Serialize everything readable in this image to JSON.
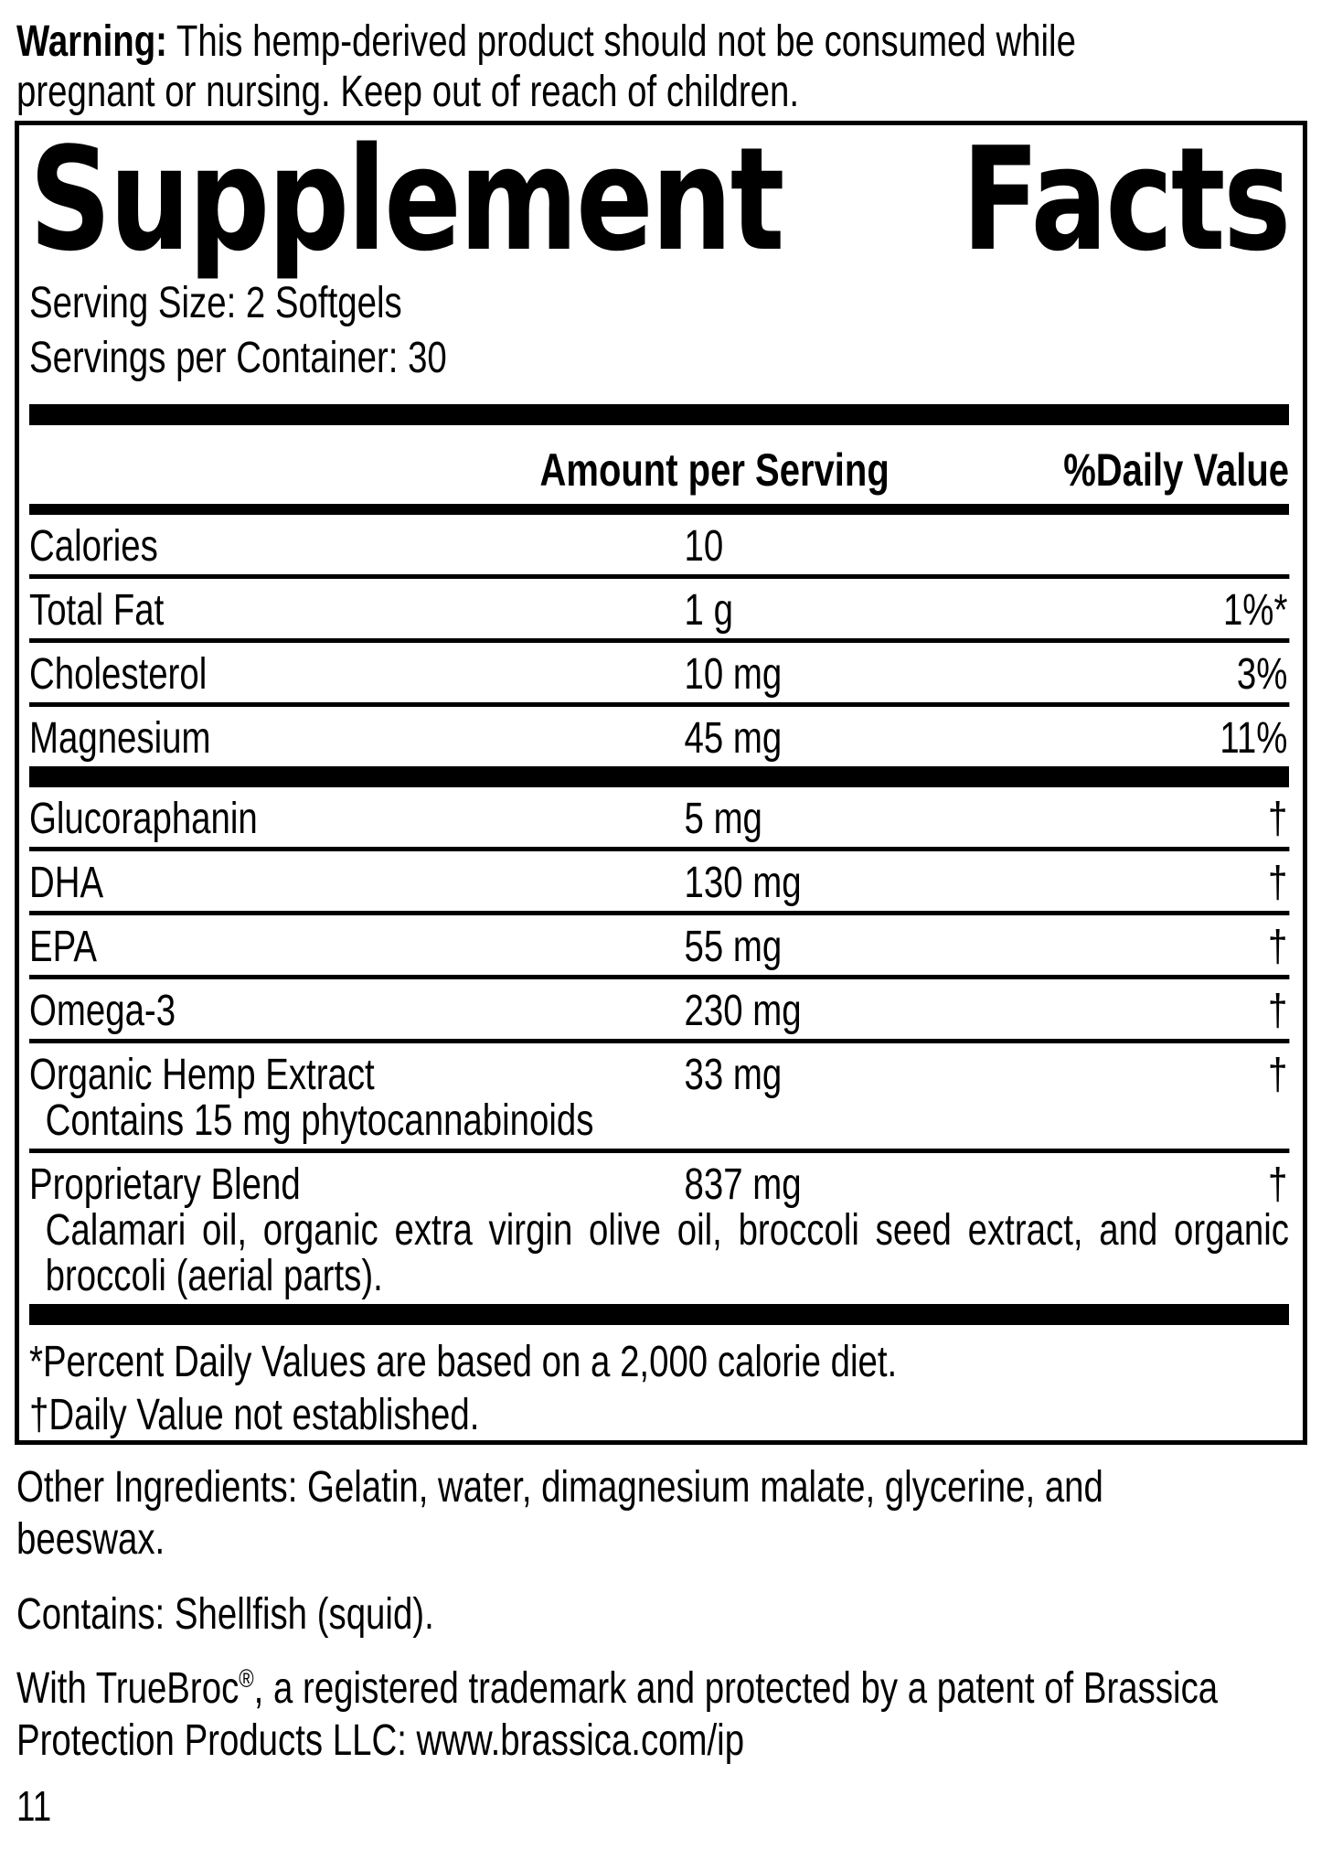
{
  "colors": {
    "ink": "#000000",
    "paper": "#ffffff"
  },
  "warning": {
    "label": "Warning:",
    "text": " This hemp-derived product should not be consumed while pregnant or nursing. Keep out of reach of children."
  },
  "panel": {
    "title_word1": "Supplement",
    "title_word2": "Facts",
    "serving_size": "Serving Size: 2 Softgels",
    "servings_per_container": "Servings per Container: 30",
    "col_amount": "Amount per Serving",
    "col_dv": "%Daily Value",
    "rows": [
      {
        "name": "Calories",
        "amount": "10",
        "dv": ""
      },
      {
        "name": "Total Fat",
        "amount": "1 g",
        "dv": "1%*"
      },
      {
        "name": "Cholesterol",
        "amount": "10 mg",
        "dv": "3%"
      },
      {
        "name": "Magnesium",
        "amount": "45 mg",
        "dv": "11%",
        "thick_after": true
      },
      {
        "name": "Glucoraphanin",
        "amount": "5 mg",
        "dv": "†"
      },
      {
        "name": "DHA",
        "amount": "130 mg",
        "dv": "†"
      },
      {
        "name": "EPA",
        "amount": "55 mg",
        "dv": "†"
      },
      {
        "name": "Omega-3",
        "amount": "230 mg",
        "dv": "†"
      },
      {
        "name": "Organic Hemp Extract",
        "amount": "33 mg",
        "dv": "†",
        "sub": "Contains 15 mg phytocannabinoids"
      },
      {
        "name": "Proprietary Blend",
        "amount": "837 mg",
        "dv": "†",
        "sub": "Calamari oil, organic extra virgin olive oil, broccoli seed extract, and organic broccoli (aerial parts).",
        "sub_justify": true,
        "thick_after": true
      }
    ],
    "footnote_star": "*Percent Daily Values are based on a 2,000 calorie diet.",
    "footnote_dagger": "†Daily Value not established."
  },
  "other_ingredients": "Other Ingredients: Gelatin, water, dimagnesium malate, glycerine, and beeswax.",
  "contains": "Contains: Shellfish (squid).",
  "trademark": {
    "pre": "With TrueBroc",
    "reg": "®",
    "post": ", a registered trademark and protected by a patent of Brassica Protection Products LLC: www.brassica.com/ip"
  },
  "page_number": "11"
}
